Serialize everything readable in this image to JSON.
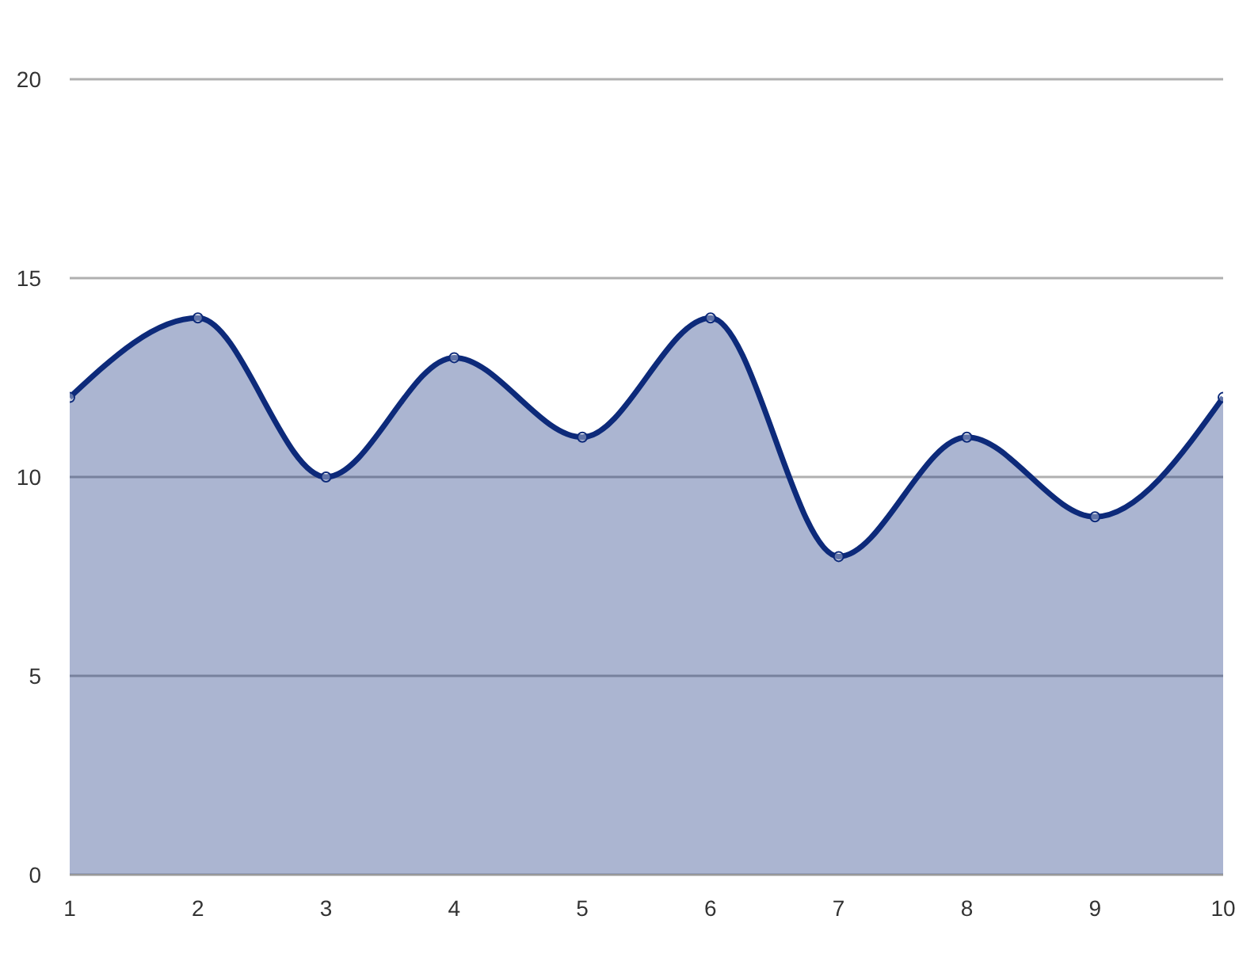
{
  "chart_data": {
    "type": "area",
    "x": [
      1,
      2,
      3,
      4,
      5,
      6,
      7,
      8,
      9,
      10
    ],
    "values": [
      12,
      14,
      10,
      13,
      11,
      14,
      8,
      11,
      9,
      12
    ],
    "color": "#0d2a7a",
    "xlim": [
      1,
      10
    ],
    "xticks": [
      1,
      2,
      3,
      4,
      5,
      6,
      7,
      8,
      9,
      10
    ],
    "ylim": [
      0,
      20
    ],
    "yticks": [
      0,
      5,
      10,
      15,
      20
    ],
    "grid": "y",
    "marker": "circle",
    "line_style": "solid"
  }
}
